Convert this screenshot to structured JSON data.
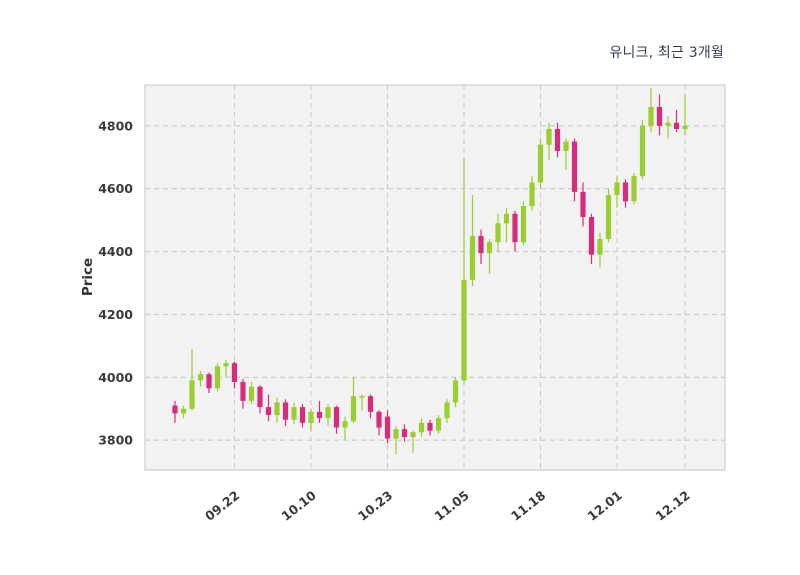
{
  "title": "유니크, 최근 3개월",
  "colors": {
    "up": "#9acd32",
    "down": "#d92b7c",
    "plot_bg": "#f2f2f2",
    "grid": "#c9c9c9",
    "border": "#cfcfcf",
    "tick_text": "#3a3a3a",
    "title_text": "#333d52"
  },
  "chart_data": {
    "type": "candlestick",
    "title": "유니크, 최근 3개월",
    "xlabel": "",
    "ylabel": "Price",
    "ylim": [
      3705,
      4930
    ],
    "y_ticks": [
      3800,
      4000,
      4200,
      4400,
      4600,
      4800
    ],
    "x_tick_indices": [
      7,
      16,
      25,
      34,
      43,
      52,
      60
    ],
    "x_tick_labels": [
      "09.22",
      "10.10",
      "10.23",
      "11.05",
      "11.18",
      "12.01",
      "12.12"
    ],
    "grid": true,
    "legend": "none",
    "candles_format": [
      "date",
      "open",
      "high",
      "low",
      "close"
    ],
    "candles": [
      [
        "09.13",
        3910,
        3925,
        3855,
        3885
      ],
      [
        "09.14",
        3885,
        3910,
        3870,
        3900
      ],
      [
        "09.15",
        3900,
        4090,
        3895,
        3990
      ],
      [
        "09.18",
        3990,
        4020,
        3970,
        4010
      ],
      [
        "09.19",
        4010,
        4015,
        3950,
        3965
      ],
      [
        "09.20",
        3965,
        4045,
        3955,
        4035
      ],
      [
        "09.21",
        4035,
        4055,
        4000,
        4045
      ],
      [
        "09.22",
        4045,
        4050,
        3965,
        3985
      ],
      [
        "09.25",
        3985,
        3995,
        3900,
        3925
      ],
      [
        "09.26",
        3925,
        3985,
        3915,
        3970
      ],
      [
        "09.27",
        3970,
        3975,
        3885,
        3905
      ],
      [
        "10.04",
        3905,
        3945,
        3860,
        3880
      ],
      [
        "10.05",
        3880,
        3935,
        3855,
        3920
      ],
      [
        "10.06",
        3920,
        3930,
        3845,
        3865
      ],
      [
        "10.08",
        3865,
        3920,
        3850,
        3905
      ],
      [
        "10.09",
        3905,
        3915,
        3840,
        3855
      ],
      [
        "10.10",
        3855,
        3900,
        3830,
        3890
      ],
      [
        "10.11",
        3890,
        3925,
        3855,
        3870
      ],
      [
        "10.12",
        3870,
        3915,
        3845,
        3905
      ],
      [
        "10.13",
        3905,
        3910,
        3820,
        3840
      ],
      [
        "10.16",
        3840,
        3875,
        3800,
        3860
      ],
      [
        "10.17",
        3860,
        4000,
        3855,
        3940
      ],
      [
        "10.18",
        3935,
        3945,
        3895,
        3940
      ],
      [
        "10.19",
        3940,
        3945,
        3870,
        3890
      ],
      [
        "10.20",
        3890,
        3895,
        3815,
        3840
      ],
      [
        "10.23",
        3875,
        3895,
        3790,
        3805
      ],
      [
        "10.24",
        3805,
        3845,
        3755,
        3835
      ],
      [
        "10.25",
        3835,
        3850,
        3795,
        3810
      ],
      [
        "10.26",
        3810,
        3830,
        3760,
        3825
      ],
      [
        "10.27",
        3825,
        3870,
        3810,
        3855
      ],
      [
        "10.30",
        3855,
        3865,
        3815,
        3830
      ],
      [
        "10.31",
        3830,
        3880,
        3820,
        3870
      ],
      [
        "11.01",
        3870,
        3930,
        3855,
        3920
      ],
      [
        "11.03",
        3920,
        4000,
        3905,
        3990
      ],
      [
        "11.05",
        3990,
        4700,
        3980,
        4310
      ],
      [
        "11.06",
        4310,
        4580,
        4290,
        4450
      ],
      [
        "11.07",
        4450,
        4470,
        4360,
        4395
      ],
      [
        "11.08",
        4395,
        4440,
        4330,
        4430
      ],
      [
        "11.09",
        4430,
        4520,
        4400,
        4490
      ],
      [
        "11.10",
        4490,
        4540,
        4430,
        4520
      ],
      [
        "11.13",
        4520,
        4530,
        4400,
        4430
      ],
      [
        "11.14",
        4430,
        4560,
        4420,
        4545
      ],
      [
        "11.16",
        4545,
        4640,
        4530,
        4620
      ],
      [
        "11.18",
        4620,
        4760,
        4600,
        4740
      ],
      [
        "11.20",
        4740,
        4810,
        4690,
        4790
      ],
      [
        "11.21",
        4790,
        4810,
        4700,
        4720
      ],
      [
        "11.22",
        4720,
        4760,
        4660,
        4750
      ],
      [
        "11.23",
        4750,
        4760,
        4560,
        4590
      ],
      [
        "11.24",
        4590,
        4620,
        4480,
        4510
      ],
      [
        "11.27",
        4510,
        4520,
        4360,
        4390
      ],
      [
        "11.28",
        4390,
        4460,
        4350,
        4440
      ],
      [
        "11.29",
        4440,
        4600,
        4430,
        4580
      ],
      [
        "12.01",
        4580,
        4640,
        4540,
        4620
      ],
      [
        "12.04",
        4620,
        4630,
        4540,
        4560
      ],
      [
        "12.05",
        4560,
        4650,
        4550,
        4640
      ],
      [
        "12.06",
        4640,
        4820,
        4630,
        4800
      ],
      [
        "12.07",
        4800,
        4920,
        4780,
        4860
      ],
      [
        "12.08",
        4860,
        4900,
        4770,
        4800
      ],
      [
        "12.10",
        4800,
        4830,
        4760,
        4810
      ],
      [
        "12.11",
        4810,
        4850,
        4780,
        4790
      ],
      [
        "12.12",
        4790,
        4900,
        4770,
        4800
      ]
    ]
  }
}
